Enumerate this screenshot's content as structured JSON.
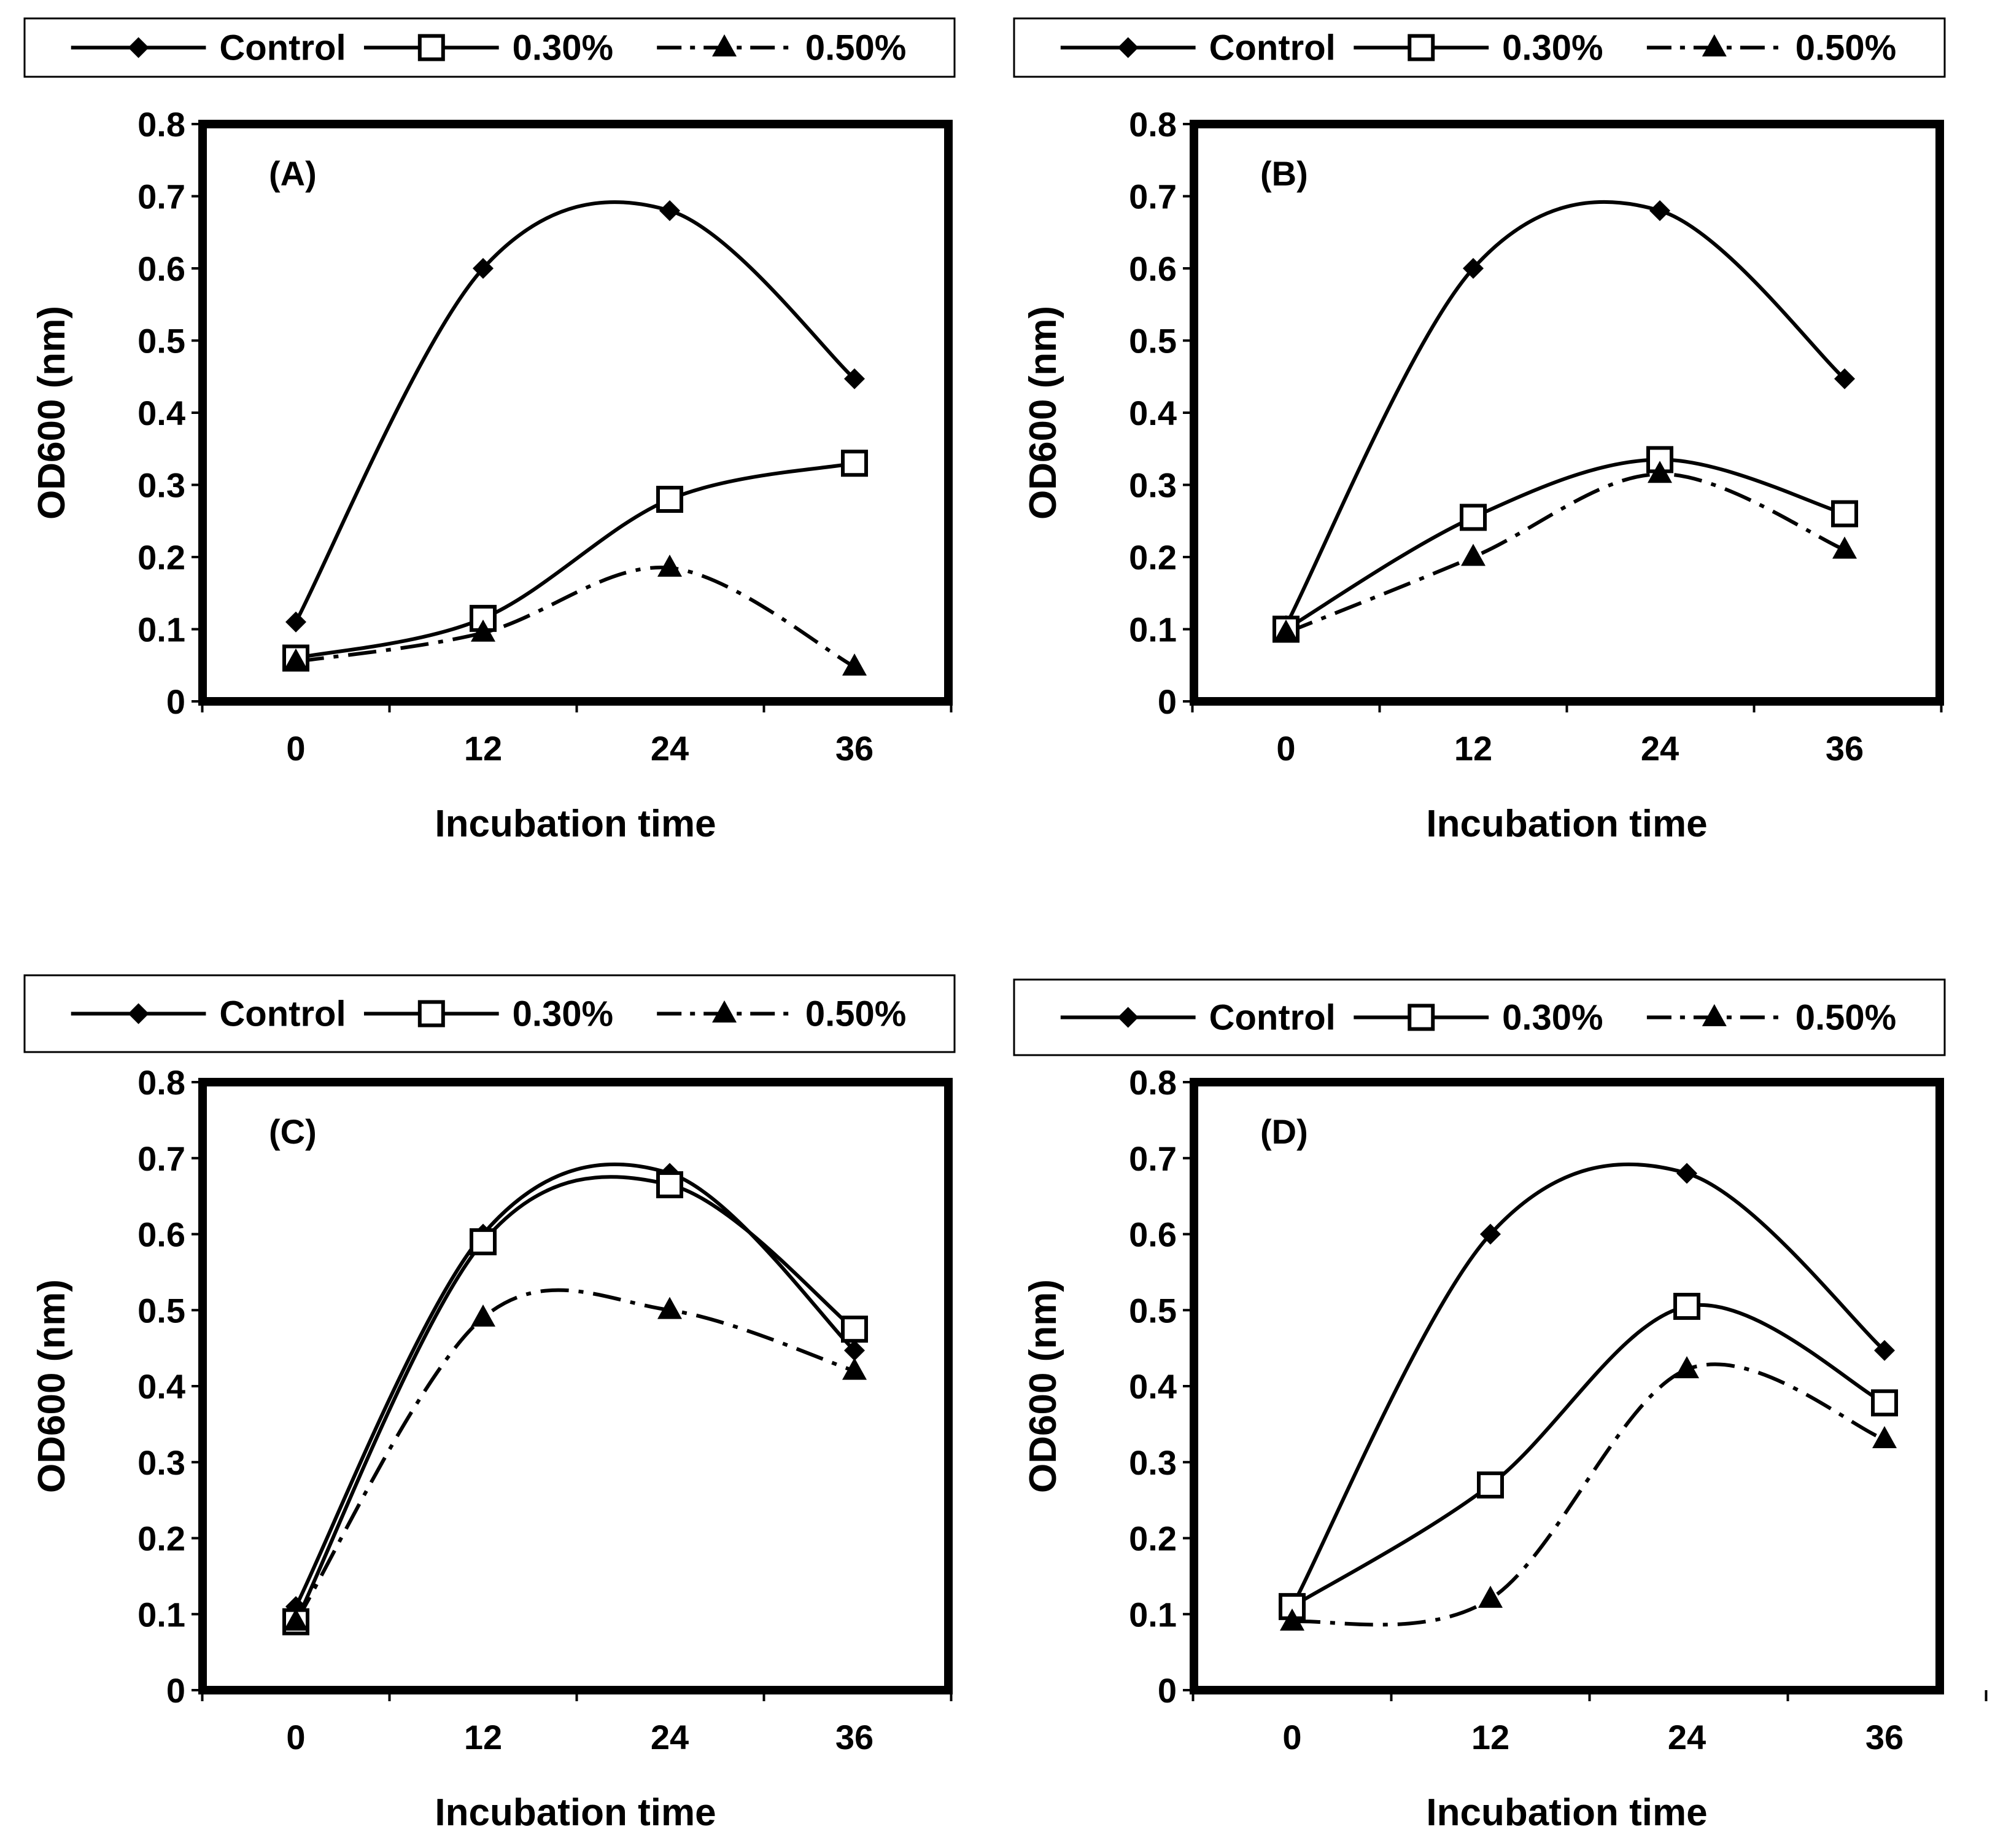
{
  "figure": {
    "legend": [
      {
        "name": "Control",
        "marker": "diamond-icon",
        "line": "solid"
      },
      {
        "name": "0.30%",
        "marker": "open-square-icon",
        "line": "solid"
      },
      {
        "name": "0.50%",
        "marker": "filled-triangle-icon",
        "line": "dash-dot"
      }
    ],
    "colors": {
      "line": "#000000",
      "background": "#ffffff"
    }
  },
  "chart_data": [
    {
      "type": "line",
      "panel": "(A)",
      "categories": [
        "0",
        "12",
        "24",
        "36"
      ],
      "x": [
        0,
        12,
        24,
        36
      ],
      "xlabel": "Incubation time",
      "ylabel": "OD600 (nm)",
      "ylim": [
        0,
        0.8
      ],
      "yticks": [
        "0",
        "0.1",
        "0.2",
        "0.3",
        "0.4",
        "0.5",
        "0.6",
        "0.7",
        "0.8"
      ],
      "legend_position": "top",
      "series": [
        {
          "name": "Control",
          "values": [
            0.11,
            0.6,
            0.68,
            0.447
          ]
        },
        {
          "name": "0.30%",
          "values": [
            0.06,
            0.115,
            0.28,
            0.33
          ]
        },
        {
          "name": "0.50%",
          "values": [
            0.055,
            0.095,
            0.185,
            0.048
          ]
        }
      ]
    },
    {
      "type": "line",
      "panel": "(B)",
      "categories": [
        "0",
        "12",
        "24",
        "36"
      ],
      "x": [
        0,
        12,
        24,
        36
      ],
      "xlabel": "Incubation time",
      "ylabel": "OD600 (nm)",
      "ylim": [
        0,
        0.8
      ],
      "yticks": [
        "0",
        "0.1",
        "0.2",
        "0.3",
        "0.4",
        "0.5",
        "0.6",
        "0.7",
        "0.8"
      ],
      "legend_position": "top",
      "series": [
        {
          "name": "Control",
          "values": [
            0.105,
            0.6,
            0.68,
            0.447
          ]
        },
        {
          "name": "0.30%",
          "values": [
            0.1,
            0.255,
            0.335,
            0.26
          ]
        },
        {
          "name": "0.50%",
          "values": [
            0.095,
            0.2,
            0.315,
            0.21
          ]
        }
      ]
    },
    {
      "type": "line",
      "panel": "(C)",
      "categories": [
        "0",
        "12",
        "24",
        "36"
      ],
      "x": [
        0,
        12,
        24,
        36
      ],
      "xlabel": "Incubation time",
      "ylabel": "OD600 (nm)",
      "ylim": [
        0,
        0.8
      ],
      "yticks": [
        "0",
        "0.1",
        "0.2",
        "0.3",
        "0.4",
        "0.5",
        "0.6",
        "0.7",
        "0.8"
      ],
      "legend_position": "top",
      "series": [
        {
          "name": "Control",
          "values": [
            0.11,
            0.6,
            0.68,
            0.447
          ]
        },
        {
          "name": "0.30%",
          "values": [
            0.09,
            0.59,
            0.665,
            0.475
          ]
        },
        {
          "name": "0.50%",
          "values": [
            0.09,
            0.49,
            0.5,
            0.42
          ]
        }
      ]
    },
    {
      "type": "line",
      "panel": "(D)",
      "categories": [
        "0",
        "12",
        "24",
        "36"
      ],
      "x": [
        0,
        12,
        24,
        36
      ],
      "xlabel": "Incubation time",
      "ylabel": "OD600 (nm)",
      "ylim": [
        0,
        0.8
      ],
      "yticks": [
        "0",
        "0.1",
        "0.2",
        "0.3",
        "0.4",
        "0.5",
        "0.6",
        "0.7",
        "0.8"
      ],
      "legend_position": "top",
      "series": [
        {
          "name": "Control",
          "values": [
            0.11,
            0.6,
            0.68,
            0.447
          ]
        },
        {
          "name": "0.30%",
          "values": [
            0.11,
            0.27,
            0.505,
            0.378
          ]
        },
        {
          "name": "0.50%",
          "values": [
            0.09,
            0.12,
            0.422,
            0.33
          ]
        }
      ]
    }
  ]
}
